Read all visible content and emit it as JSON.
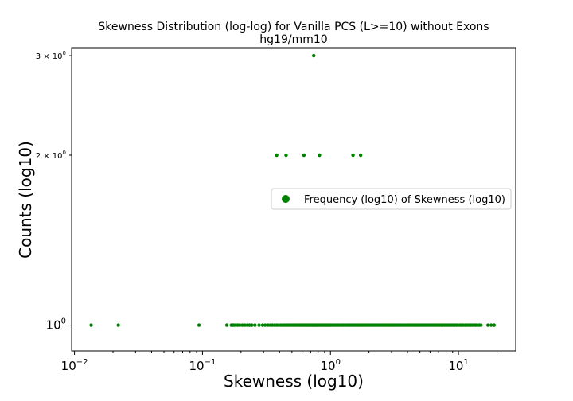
{
  "chart_data": {
    "type": "scatter",
    "title": "Skewness Distribution (log-log) for Vanilla PCS (L>=10) without Exons",
    "subtitle": "hg19/mm10",
    "xlabel": "Skewness (log10)",
    "ylabel": "Counts (log10)",
    "x_scale": "log",
    "y_scale": "log",
    "xlim": [
      0.0095,
      28
    ],
    "ylim": [
      0.9,
      3.1
    ],
    "grid": false,
    "legend_position": "center-right",
    "x_ticks": [
      {
        "value": 0.01,
        "base": "10",
        "exp": "−2"
      },
      {
        "value": 0.1,
        "base": "10",
        "exp": "−1"
      },
      {
        "value": 1,
        "base": "10",
        "exp": "0"
      },
      {
        "value": 10,
        "base": "10",
        "exp": "1"
      }
    ],
    "y_ticks": [
      {
        "value": 1,
        "label": "10",
        "exp": "0",
        "kind": "major"
      },
      {
        "value": 2,
        "label": "2 × 10",
        "exp": "0",
        "kind": "minor"
      },
      {
        "value": 3,
        "label": "3 × 10",
        "exp": "0",
        "kind": "minor"
      }
    ],
    "series": [
      {
        "name": "Frequency (log10) of Skewness (log10)",
        "color": "#008000",
        "points": [
          {
            "x": 0.0135,
            "y": 1
          },
          {
            "x": 0.022,
            "y": 1
          },
          {
            "x": 0.094,
            "y": 1
          },
          {
            "x": 0.155,
            "y": 1
          },
          {
            "x": 0.168,
            "y": 1
          },
          {
            "x": 0.172,
            "y": 1
          },
          {
            "x": 0.176,
            "y": 1
          },
          {
            "x": 0.182,
            "y": 1
          },
          {
            "x": 0.189,
            "y": 1
          },
          {
            "x": 0.196,
            "y": 1
          },
          {
            "x": 0.205,
            "y": 1
          },
          {
            "x": 0.214,
            "y": 1
          },
          {
            "x": 0.224,
            "y": 1
          },
          {
            "x": 0.233,
            "y": 1
          },
          {
            "x": 0.243,
            "y": 1
          },
          {
            "x": 0.257,
            "y": 1
          },
          {
            "x": 0.277,
            "y": 1
          },
          {
            "x": 0.295,
            "y": 1
          },
          {
            "x": 0.309,
            "y": 1
          },
          {
            "x": 0.325,
            "y": 1
          },
          {
            "x": 0.339,
            "y": 1
          },
          {
            "x": 0.352,
            "y": 1
          },
          {
            "x": 0.366,
            "y": 1
          },
          {
            "x": 0.38,
            "y": 1
          },
          {
            "x": 0.395,
            "y": 1
          },
          {
            "x": 0.41,
            "y": 1
          },
          {
            "x": 0.425,
            "y": 1
          },
          {
            "x": 0.44,
            "y": 1
          },
          {
            "x": 0.455,
            "y": 1
          },
          {
            "x": 0.47,
            "y": 1
          },
          {
            "x": 0.486,
            "y": 1
          },
          {
            "x": 0.5,
            "y": 1
          },
          {
            "x": 0.515,
            "y": 1
          },
          {
            "x": 0.53,
            "y": 1
          },
          {
            "x": 0.545,
            "y": 1
          },
          {
            "x": 0.56,
            "y": 1
          },
          {
            "x": 0.575,
            "y": 1
          },
          {
            "x": 0.59,
            "y": 1
          },
          {
            "x": 0.605,
            "y": 1
          },
          {
            "x": 0.62,
            "y": 1
          },
          {
            "x": 0.635,
            "y": 1
          },
          {
            "x": 0.65,
            "y": 1
          },
          {
            "x": 0.665,
            "y": 1
          },
          {
            "x": 0.68,
            "y": 1
          },
          {
            "x": 0.695,
            "y": 1
          },
          {
            "x": 0.71,
            "y": 1
          },
          {
            "x": 0.725,
            "y": 1
          },
          {
            "x": 0.74,
            "y": 1
          },
          {
            "x": 0.755,
            "y": 1
          },
          {
            "x": 0.77,
            "y": 1
          },
          {
            "x": 0.785,
            "y": 1
          },
          {
            "x": 0.8,
            "y": 1
          },
          {
            "x": 0.82,
            "y": 1
          },
          {
            "x": 0.84,
            "y": 1
          },
          {
            "x": 0.86,
            "y": 1
          },
          {
            "x": 0.88,
            "y": 1
          },
          {
            "x": 0.9,
            "y": 1
          },
          {
            "x": 0.92,
            "y": 1
          },
          {
            "x": 0.94,
            "y": 1
          },
          {
            "x": 0.96,
            "y": 1
          },
          {
            "x": 0.98,
            "y": 1
          },
          {
            "x": 1.0,
            "y": 1
          },
          {
            "x": 1.03,
            "y": 1
          },
          {
            "x": 1.06,
            "y": 1
          },
          {
            "x": 1.09,
            "y": 1
          },
          {
            "x": 1.12,
            "y": 1
          },
          {
            "x": 1.15,
            "y": 1
          },
          {
            "x": 1.18,
            "y": 1
          },
          {
            "x": 1.22,
            "y": 1
          },
          {
            "x": 1.26,
            "y": 1
          },
          {
            "x": 1.3,
            "y": 1
          },
          {
            "x": 1.34,
            "y": 1
          },
          {
            "x": 1.38,
            "y": 1
          },
          {
            "x": 1.42,
            "y": 1
          },
          {
            "x": 1.46,
            "y": 1
          },
          {
            "x": 1.5,
            "y": 1
          },
          {
            "x": 1.55,
            "y": 1
          },
          {
            "x": 1.6,
            "y": 1
          },
          {
            "x": 1.65,
            "y": 1
          },
          {
            "x": 1.7,
            "y": 1
          },
          {
            "x": 1.75,
            "y": 1
          },
          {
            "x": 1.8,
            "y": 1
          },
          {
            "x": 1.86,
            "y": 1
          },
          {
            "x": 1.92,
            "y": 1
          },
          {
            "x": 1.98,
            "y": 1
          },
          {
            "x": 2.04,
            "y": 1
          },
          {
            "x": 2.1,
            "y": 1
          },
          {
            "x": 2.17,
            "y": 1
          },
          {
            "x": 2.24,
            "y": 1
          },
          {
            "x": 2.31,
            "y": 1
          },
          {
            "x": 2.38,
            "y": 1
          },
          {
            "x": 2.45,
            "y": 1
          },
          {
            "x": 2.53,
            "y": 1
          },
          {
            "x": 2.61,
            "y": 1
          },
          {
            "x": 2.69,
            "y": 1
          },
          {
            "x": 2.77,
            "y": 1
          },
          {
            "x": 2.86,
            "y": 1
          },
          {
            "x": 2.95,
            "y": 1
          },
          {
            "x": 3.04,
            "y": 1
          },
          {
            "x": 3.13,
            "y": 1
          },
          {
            "x": 3.23,
            "y": 1
          },
          {
            "x": 3.33,
            "y": 1
          },
          {
            "x": 3.43,
            "y": 1
          },
          {
            "x": 3.54,
            "y": 1
          },
          {
            "x": 3.65,
            "y": 1
          },
          {
            "x": 3.76,
            "y": 1
          },
          {
            "x": 3.88,
            "y": 1
          },
          {
            "x": 4.0,
            "y": 1
          },
          {
            "x": 4.12,
            "y": 1
          },
          {
            "x": 4.25,
            "y": 1
          },
          {
            "x": 4.38,
            "y": 1
          },
          {
            "x": 4.52,
            "y": 1
          },
          {
            "x": 4.66,
            "y": 1
          },
          {
            "x": 4.8,
            "y": 1
          },
          {
            "x": 4.95,
            "y": 1
          },
          {
            "x": 5.1,
            "y": 1
          },
          {
            "x": 5.26,
            "y": 1
          },
          {
            "x": 5.42,
            "y": 1
          },
          {
            "x": 5.59,
            "y": 1
          },
          {
            "x": 5.76,
            "y": 1
          },
          {
            "x": 5.94,
            "y": 1
          },
          {
            "x": 6.12,
            "y": 1
          },
          {
            "x": 6.31,
            "y": 1
          },
          {
            "x": 6.5,
            "y": 1
          },
          {
            "x": 6.7,
            "y": 1
          },
          {
            "x": 6.91,
            "y": 1
          },
          {
            "x": 7.12,
            "y": 1
          },
          {
            "x": 7.34,
            "y": 1
          },
          {
            "x": 7.57,
            "y": 1
          },
          {
            "x": 7.8,
            "y": 1
          },
          {
            "x": 8.04,
            "y": 1
          },
          {
            "x": 8.29,
            "y": 1
          },
          {
            "x": 8.55,
            "y": 1
          },
          {
            "x": 8.81,
            "y": 1
          },
          {
            "x": 9.08,
            "y": 1
          },
          {
            "x": 9.36,
            "y": 1
          },
          {
            "x": 9.65,
            "y": 1
          },
          {
            "x": 9.95,
            "y": 1
          },
          {
            "x": 10.3,
            "y": 1
          },
          {
            "x": 10.6,
            "y": 1
          },
          {
            "x": 10.9,
            "y": 1
          },
          {
            "x": 11.3,
            "y": 1
          },
          {
            "x": 11.6,
            "y": 1
          },
          {
            "x": 12.0,
            "y": 1
          },
          {
            "x": 12.4,
            "y": 1
          },
          {
            "x": 12.8,
            "y": 1
          },
          {
            "x": 13.2,
            "y": 1
          },
          {
            "x": 13.6,
            "y": 1
          },
          {
            "x": 14.0,
            "y": 1
          },
          {
            "x": 14.5,
            "y": 1
          },
          {
            "x": 15.0,
            "y": 1
          },
          {
            "x": 17.0,
            "y": 1
          },
          {
            "x": 18.0,
            "y": 1
          },
          {
            "x": 19.0,
            "y": 1
          },
          {
            "x": 0.38,
            "y": 2
          },
          {
            "x": 0.45,
            "y": 2
          },
          {
            "x": 0.62,
            "y": 2
          },
          {
            "x": 0.82,
            "y": 2
          },
          {
            "x": 1.5,
            "y": 2
          },
          {
            "x": 1.72,
            "y": 2
          },
          {
            "x": 0.74,
            "y": 3
          }
        ]
      }
    ]
  }
}
